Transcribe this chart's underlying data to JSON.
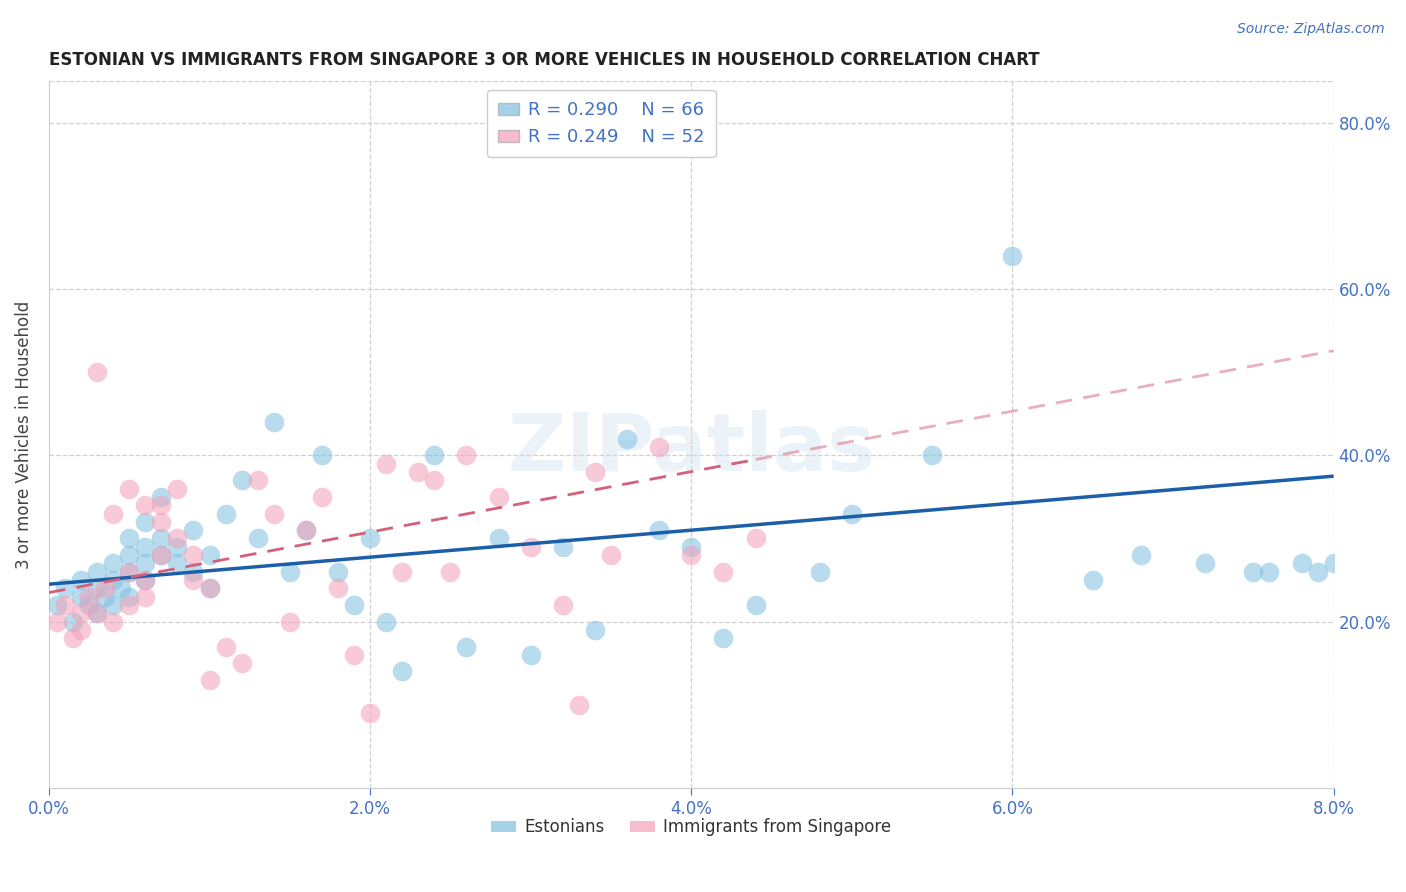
{
  "title": "ESTONIAN VS IMMIGRANTS FROM SINGAPORE 3 OR MORE VEHICLES IN HOUSEHOLD CORRELATION CHART",
  "source": "Source: ZipAtlas.com",
  "ylabel": "3 or more Vehicles in Household",
  "xmin": 0.0,
  "xmax": 0.08,
  "ymin": 0.0,
  "ymax": 0.85,
  "yticks_right": [
    0.2,
    0.4,
    0.6,
    0.8
  ],
  "ytick_labels_right": [
    "20.0%",
    "40.0%",
    "60.0%",
    "80.0%"
  ],
  "xticks": [
    0.0,
    0.02,
    0.04,
    0.06,
    0.08
  ],
  "xtick_labels": [
    "0.0%",
    "2.0%",
    "4.0%",
    "6.0%",
    "8.0%"
  ],
  "grid_color": "#d0d0d0",
  "background_color": "#ffffff",
  "blue_color": "#7fbfdf",
  "blue_line_color": "#1a5fa8",
  "pink_color": "#f4a0b8",
  "pink_line_color": "#d4607a",
  "legend_R1": "R = 0.290",
  "legend_N1": "N = 66",
  "legend_R2": "R = 0.249",
  "legend_N2": "N = 52",
  "legend_label1": "Estonians",
  "legend_label2": "Immigrants from Singapore",
  "watermark": "ZIPatlas",
  "est_line_x": [
    0.0,
    0.08
  ],
  "est_line_y": [
    0.245,
    0.375
  ],
  "sin_line_x": [
    0.0,
    0.044
  ],
  "sin_line_y": [
    0.235,
    0.395
  ],
  "estonians_x": [
    0.0005,
    0.001,
    0.0015,
    0.002,
    0.002,
    0.0025,
    0.003,
    0.003,
    0.003,
    0.0035,
    0.004,
    0.004,
    0.004,
    0.0045,
    0.005,
    0.005,
    0.005,
    0.005,
    0.006,
    0.006,
    0.006,
    0.006,
    0.007,
    0.007,
    0.007,
    0.008,
    0.008,
    0.009,
    0.009,
    0.01,
    0.01,
    0.011,
    0.012,
    0.013,
    0.014,
    0.015,
    0.016,
    0.017,
    0.018,
    0.019,
    0.02,
    0.021,
    0.022,
    0.024,
    0.026,
    0.028,
    0.03,
    0.032,
    0.034,
    0.036,
    0.038,
    0.04,
    0.042,
    0.044,
    0.048,
    0.05,
    0.055,
    0.06,
    0.065,
    0.068,
    0.072,
    0.075,
    0.076,
    0.078,
    0.079,
    0.08
  ],
  "estonians_y": [
    0.22,
    0.24,
    0.2,
    0.23,
    0.25,
    0.22,
    0.21,
    0.24,
    0.26,
    0.23,
    0.22,
    0.25,
    0.27,
    0.24,
    0.23,
    0.26,
    0.28,
    0.3,
    0.25,
    0.27,
    0.29,
    0.32,
    0.28,
    0.3,
    0.35,
    0.27,
    0.29,
    0.31,
    0.26,
    0.28,
    0.24,
    0.33,
    0.37,
    0.3,
    0.44,
    0.26,
    0.31,
    0.4,
    0.26,
    0.22,
    0.3,
    0.2,
    0.14,
    0.4,
    0.17,
    0.3,
    0.16,
    0.29,
    0.19,
    0.42,
    0.31,
    0.29,
    0.18,
    0.22,
    0.26,
    0.33,
    0.4,
    0.64,
    0.25,
    0.28,
    0.27,
    0.26,
    0.26,
    0.27,
    0.26,
    0.27
  ],
  "singapore_x": [
    0.0005,
    0.001,
    0.0015,
    0.002,
    0.002,
    0.0025,
    0.003,
    0.003,
    0.0035,
    0.004,
    0.004,
    0.005,
    0.005,
    0.005,
    0.006,
    0.006,
    0.006,
    0.007,
    0.007,
    0.007,
    0.008,
    0.008,
    0.009,
    0.009,
    0.01,
    0.01,
    0.011,
    0.012,
    0.013,
    0.014,
    0.015,
    0.016,
    0.017,
    0.018,
    0.019,
    0.02,
    0.021,
    0.022,
    0.023,
    0.024,
    0.025,
    0.026,
    0.028,
    0.03,
    0.032,
    0.033,
    0.034,
    0.035,
    0.038,
    0.04,
    0.042,
    0.044
  ],
  "singapore_y": [
    0.2,
    0.22,
    0.18,
    0.21,
    0.19,
    0.23,
    0.5,
    0.21,
    0.24,
    0.2,
    0.33,
    0.22,
    0.26,
    0.36,
    0.23,
    0.34,
    0.25,
    0.34,
    0.28,
    0.32,
    0.3,
    0.36,
    0.25,
    0.28,
    0.24,
    0.13,
    0.17,
    0.15,
    0.37,
    0.33,
    0.2,
    0.31,
    0.35,
    0.24,
    0.16,
    0.09,
    0.39,
    0.26,
    0.38,
    0.37,
    0.26,
    0.4,
    0.35,
    0.29,
    0.22,
    0.1,
    0.38,
    0.28,
    0.41,
    0.28,
    0.26,
    0.3
  ]
}
